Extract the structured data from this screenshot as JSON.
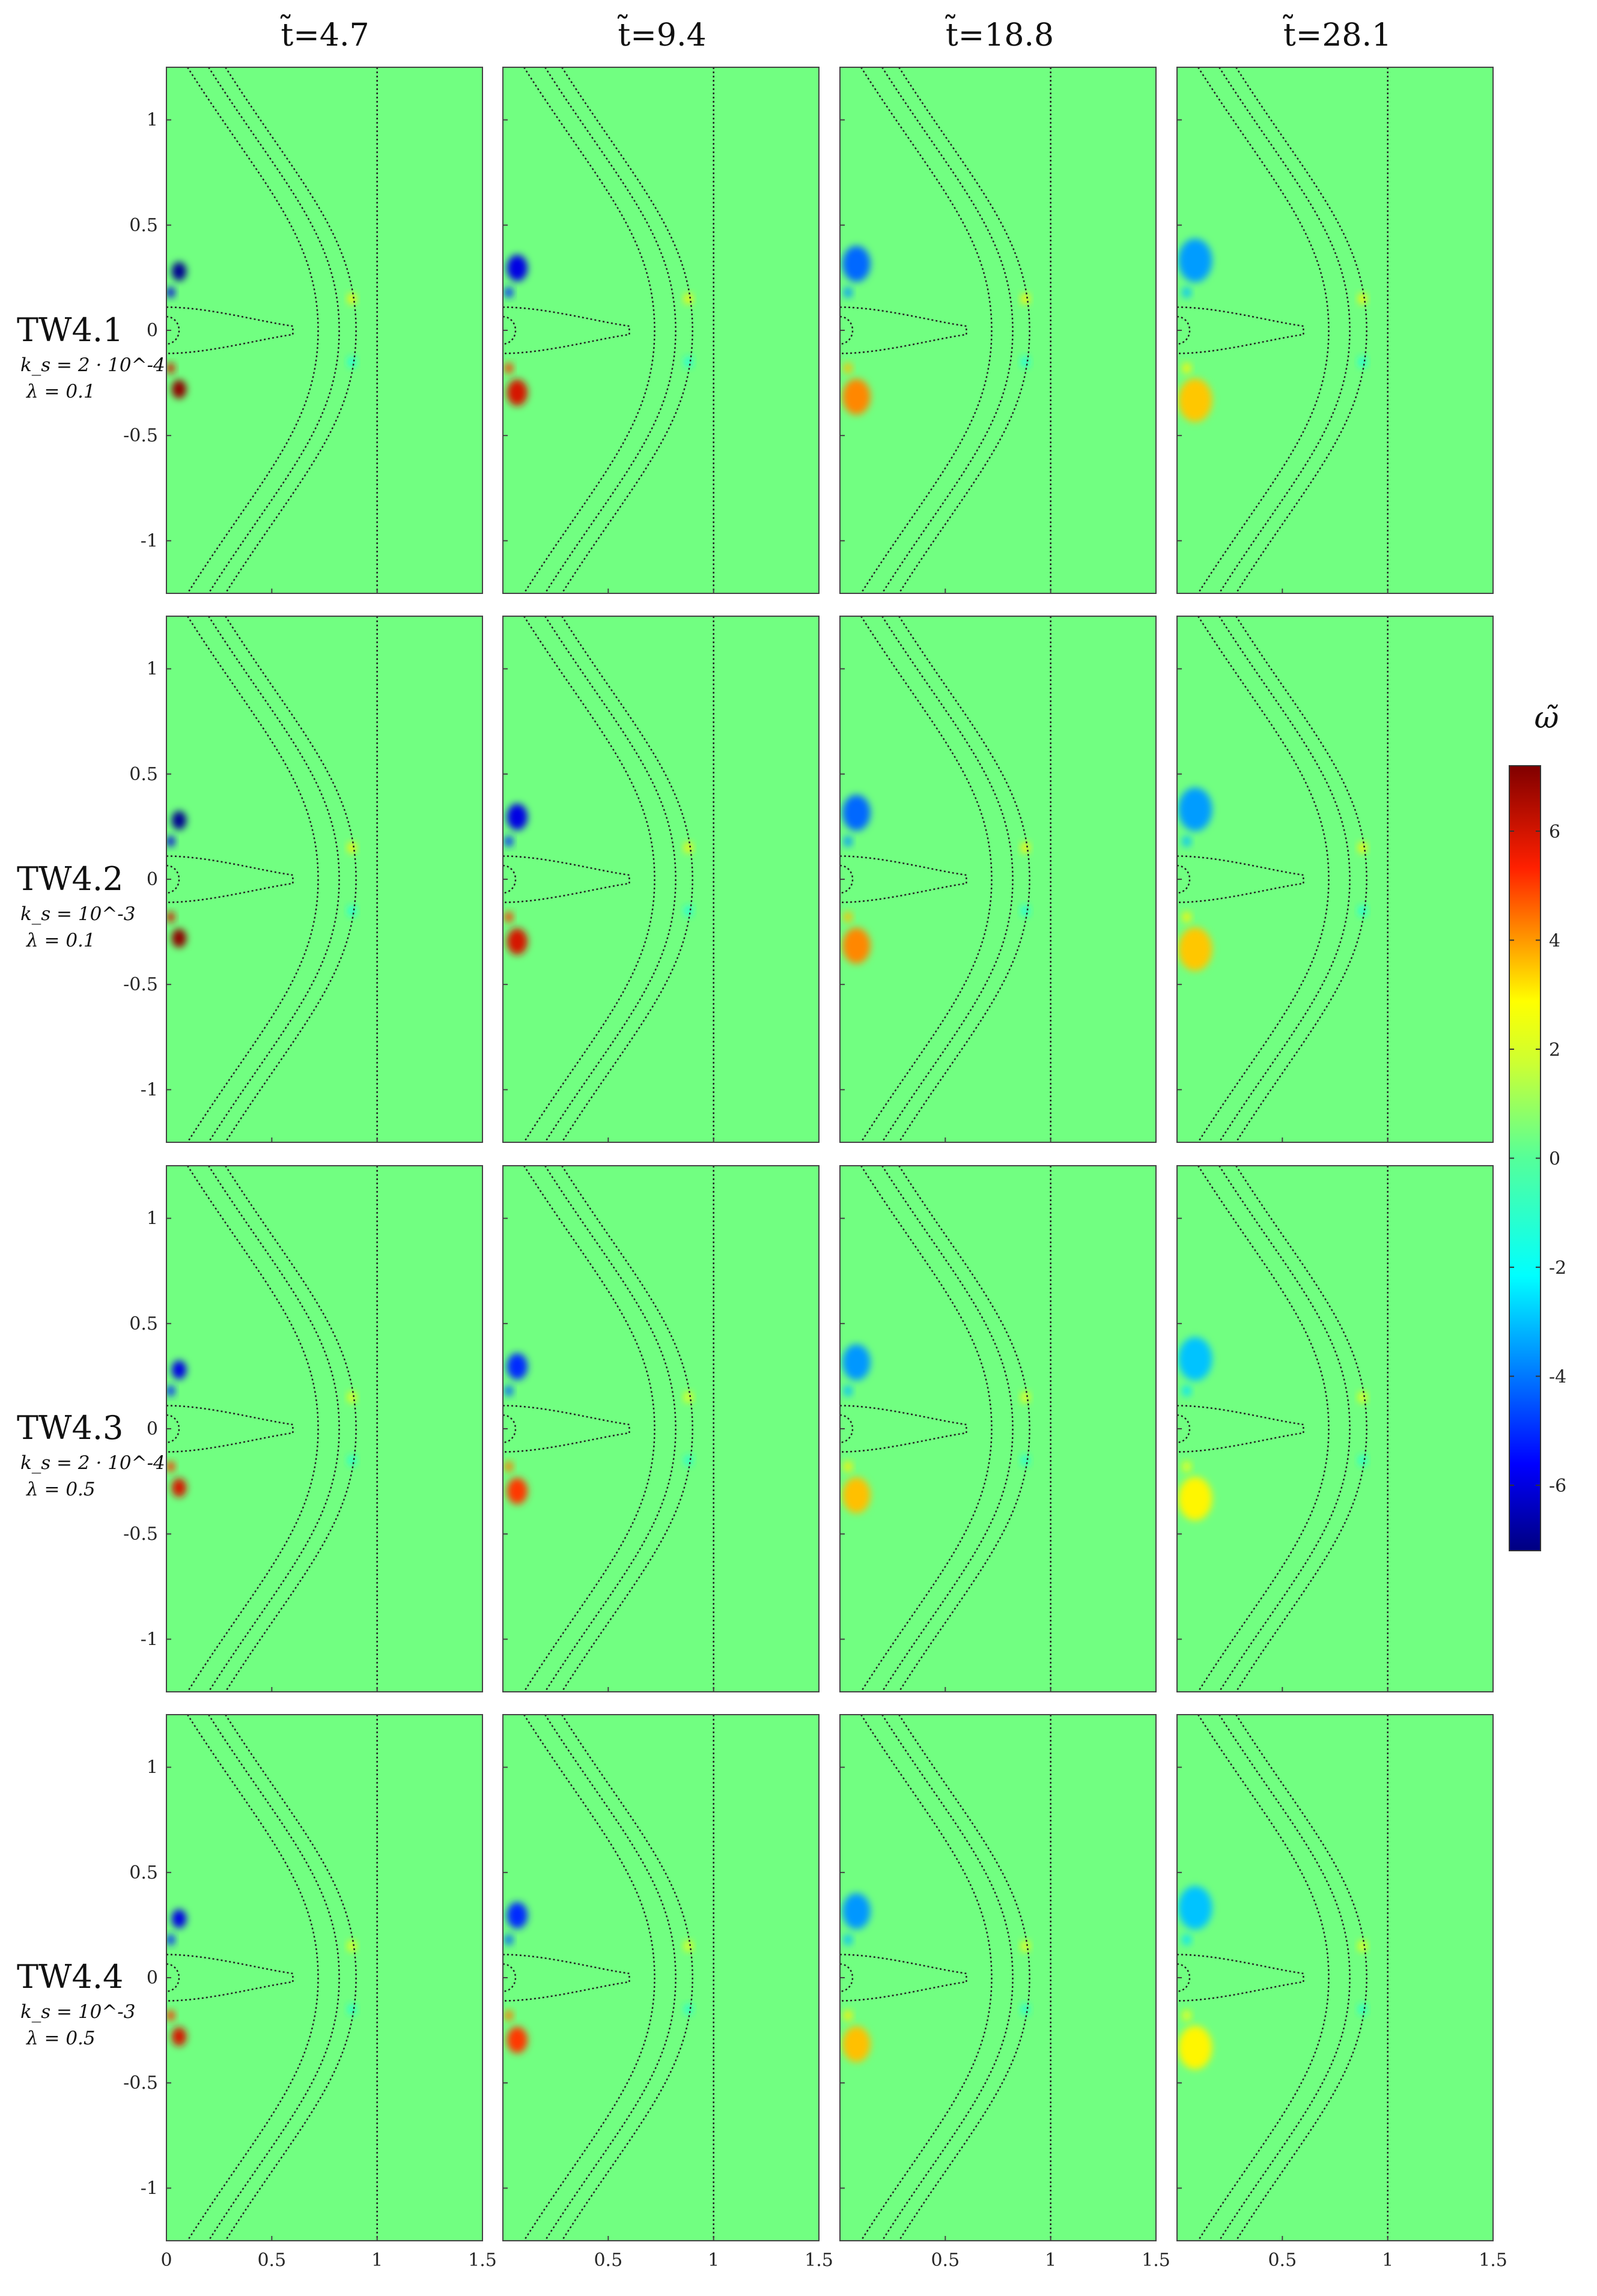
{
  "chart_data": {
    "type": "heatmap",
    "colormap": "jet",
    "background_value": 0.4,
    "colorbar": {
      "label": "ω̃",
      "clim": [
        -7.2,
        7.2
      ],
      "ticks": [
        -6,
        -4,
        -2,
        0,
        2,
        4,
        6
      ],
      "tick_labels": [
        "-6",
        "-4",
        "-2",
        "0",
        "2",
        "4",
        "6"
      ]
    },
    "xlim": [
      0,
      1.5
    ],
    "ylim": [
      -1.25,
      1.25
    ],
    "xticks": [
      0,
      0.5,
      1,
      1.5
    ],
    "xtick_labels": [
      "0",
      "0.5",
      "1",
      "1.5"
    ],
    "yticks": [
      1,
      0.5,
      0,
      -0.5,
      -1
    ],
    "ytick_labels": [
      "1",
      "0.5",
      "0",
      "-0.5",
      "-1"
    ],
    "columns": [
      {
        "title": "t̃=4.7"
      },
      {
        "title": "t̃=9.4"
      },
      {
        "title": "t̃=18.8"
      },
      {
        "title": "t̃=28.1"
      }
    ],
    "rows": [
      {
        "id": "TW4.1",
        "ks": "k_s = 2 · 10^-4",
        "lambda": "λ = 0.1"
      },
      {
        "id": "TW4.2",
        "ks": "k_s = 10^-3",
        "lambda": "λ = 0.1"
      },
      {
        "id": "TW4.3",
        "ks": "k_s = 2 · 10^-4",
        "lambda": "λ = 0.5"
      },
      {
        "id": "TW4.4",
        "ks": "k_s = 10^-3",
        "lambda": "λ = 0.5"
      }
    ],
    "overlays": {
      "island_outline_tip_x": 0.6,
      "island_half_width_y": 0.11,
      "vertical_line_x": 1.0,
      "dotted_curve_apex_x": [
        0.72,
        0.82,
        0.9
      ]
    },
    "vortex_features": [
      {
        "x": 0.06,
        "y": 0.28,
        "value": -7
      },
      {
        "x": 0.06,
        "y": -0.28,
        "value": 7
      },
      {
        "x": 0.02,
        "y": 0.18,
        "value": -6
      },
      {
        "x": 0.02,
        "y": -0.18,
        "value": 6
      },
      {
        "x": 0.88,
        "y": 0.15,
        "value": 3
      },
      {
        "x": 0.88,
        "y": -0.15,
        "value": -1.5
      }
    ]
  }
}
